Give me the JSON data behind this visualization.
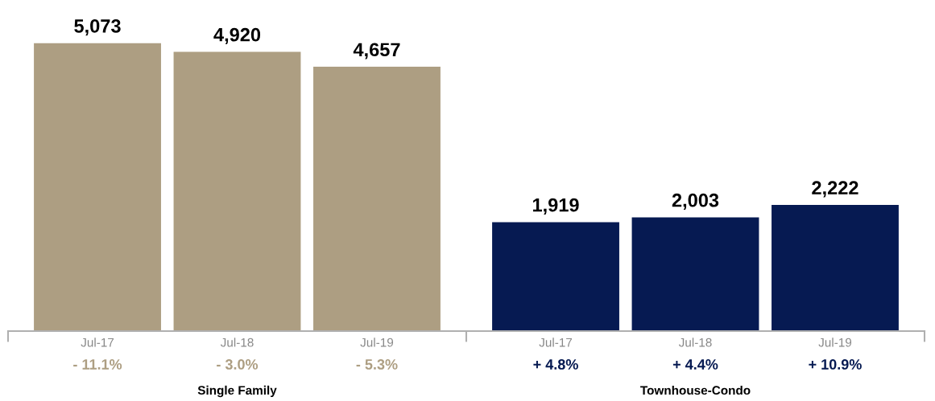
{
  "chart_data": [
    {
      "type": "bar",
      "xlabel": "Single Family",
      "categories": [
        "Jul-17",
        "Jul-18",
        "Jul-19"
      ],
      "values": [
        5073,
        4920,
        4657
      ],
      "value_labels": [
        "5,073",
        "4,920",
        "4,657"
      ],
      "color": "#ad9e82",
      "tick_labels": "x",
      "annotations": [
        "- 11.1%",
        "- 3.0%",
        "- 5.3%"
      ]
    },
    {
      "type": "bar",
      "xlabel": "Townhouse-Condo",
      "categories": [
        "Jul-17",
        "Jul-18",
        "Jul-19"
      ],
      "values": [
        1919,
        2003,
        2222
      ],
      "value_labels": [
        "1,919",
        "2,003",
        "2,222"
      ],
      "color": "#061a52",
      "tick_labels": "x",
      "annotations": [
        "+ 4.8%",
        "+ 4.4%",
        "+ 10.9%"
      ]
    }
  ]
}
